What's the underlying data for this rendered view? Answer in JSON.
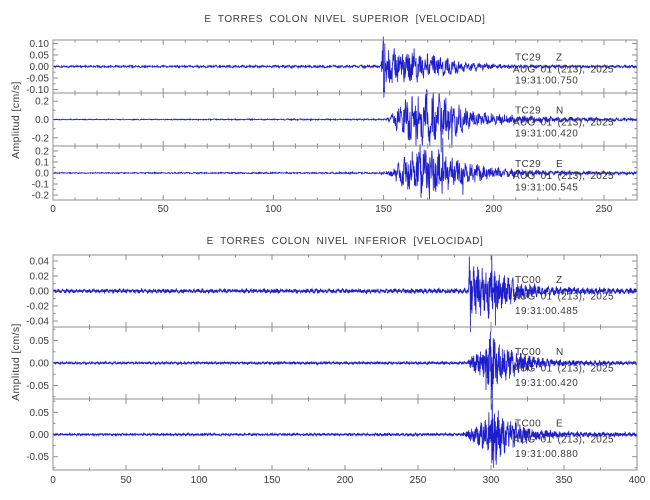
{
  "style": {
    "background": "#ffffff",
    "trace_color": "#1e1ecb",
    "frame_color": "#8f8f8f",
    "text_color": "#3b3b3b"
  },
  "chart_data": [
    {
      "type": "line",
      "title": "E TORRES COLON NIVEL SUPERIOR [VELOCIDAD]",
      "ylabel": "Amplitud [cm/s]",
      "xlim": [
        0,
        265
      ],
      "xticks": [
        0,
        50,
        100,
        150,
        200,
        250
      ],
      "xminor_step": 10,
      "grid": false,
      "legend": "none",
      "traces": [
        {
          "station": "TC29",
          "component": "Z",
          "date_label": "AUG 01 (213), 2025",
          "time_label": "19:31:00.750",
          "units": "cm/s",
          "ylim": [
            -0.115,
            0.115
          ],
          "ytick_labels": [
            "0.10",
            "0.05",
            "0.00",
            "-0.05",
            "-0.10"
          ],
          "ytick_values": [
            0.1,
            0.05,
            0.0,
            -0.05,
            -0.1
          ],
          "yminor_step": 0.025,
          "event_onset_s": 149,
          "peak_amplitude": 0.13,
          "envelope": [
            [
              0,
              0.0035
            ],
            [
              60,
              0.004
            ],
            [
              110,
              0.005
            ],
            [
              145,
              0.0055
            ],
            [
              148.8,
              0.006
            ],
            [
              149.6,
              0.12
            ],
            [
              151,
              0.09
            ],
            [
              154,
              0.075
            ],
            [
              158,
              0.065
            ],
            [
              163,
              0.07
            ],
            [
              168,
              0.055
            ],
            [
              174,
              0.045
            ],
            [
              180,
              0.032
            ],
            [
              187,
              0.022
            ],
            [
              195,
              0.013
            ],
            [
              205,
              0.009
            ],
            [
              220,
              0.007
            ],
            [
              240,
              0.006
            ],
            [
              265,
              0.005
            ]
          ],
          "spikes": [
            [
              149.8,
              0.13
            ],
            [
              150.15,
              -0.133
            ],
            [
              150.5,
              0.1
            ]
          ],
          "seed": 41
        },
        {
          "station": "TC29",
          "component": "N",
          "date_label": "AUG 01 (213), 2025",
          "time_label": "19:31:00.420",
          "units": "cm/s",
          "ylim": [
            -0.29,
            0.29
          ],
          "ytick_labels": [
            "0.2",
            "0.0",
            "-0.2"
          ],
          "ytick_values": [
            0.2,
            0.0,
            -0.2
          ],
          "yminor_step": 0.1,
          "event_onset_s": 151,
          "peak_amplitude": 0.36,
          "envelope": [
            [
              0,
              0.004
            ],
            [
              60,
              0.005
            ],
            [
              110,
              0.006
            ],
            [
              148,
              0.007
            ],
            [
              151.5,
              0.012
            ],
            [
              154,
              0.06
            ],
            [
              157,
              0.13
            ],
            [
              160,
              0.2
            ],
            [
              164,
              0.26
            ],
            [
              168,
              0.24
            ],
            [
              171,
              0.3
            ],
            [
              174,
              0.26
            ],
            [
              178,
              0.22
            ],
            [
              182,
              0.16
            ],
            [
              187,
              0.11
            ],
            [
              193,
              0.075
            ],
            [
              200,
              0.055
            ],
            [
              210,
              0.04
            ],
            [
              222,
              0.03
            ],
            [
              240,
              0.022
            ],
            [
              265,
              0.016
            ]
          ],
          "spikes": [
            [
              169.5,
              0.33
            ],
            [
              172.5,
              0.3
            ],
            [
              176.2,
              -0.36
            ],
            [
              181.0,
              -0.31
            ]
          ],
          "seed": 42
        },
        {
          "station": "TC29",
          "component": "E",
          "date_label": "AUG 01 (213), 2025",
          "time_label": "19:31:00.545",
          "units": "cm/s",
          "ylim": [
            -0.245,
            0.245
          ],
          "ytick_labels": [
            "0.2",
            "0.1",
            "0.0",
            "-0.1",
            "-0.2"
          ],
          "ytick_values": [
            0.2,
            0.1,
            0.0,
            -0.1,
            -0.2
          ],
          "yminor_step": 0.05,
          "event_onset_s": 152,
          "peak_amplitude": 0.32,
          "envelope": [
            [
              0,
              0.004
            ],
            [
              60,
              0.005
            ],
            [
              110,
              0.006
            ],
            [
              148,
              0.0065
            ],
            [
              152,
              0.02
            ],
            [
              155,
              0.07
            ],
            [
              159,
              0.12
            ],
            [
              163,
              0.17
            ],
            [
              166,
              0.22
            ],
            [
              170,
              0.18
            ],
            [
              174,
              0.2
            ],
            [
              178,
              0.15
            ],
            [
              183,
              0.11
            ],
            [
              189,
              0.08
            ],
            [
              196,
              0.055
            ],
            [
              205,
              0.038
            ],
            [
              218,
              0.025
            ],
            [
              240,
              0.017
            ],
            [
              265,
              0.013
            ]
          ],
          "spikes": [
            [
              166.5,
              0.26
            ],
            [
              170.9,
              -0.24
            ],
            [
              176.8,
              0.32
            ],
            [
              186,
              -0.2
            ]
          ],
          "seed": 43
        }
      ]
    },
    {
      "type": "line",
      "title": "E TORRES COLON NIVEL INFERIOR [VELOCIDAD]",
      "ylabel": "Amplitud [cm/s]",
      "xlim": [
        0,
        400
      ],
      "xticks": [
        0,
        50,
        100,
        150,
        200,
        250,
        300,
        350,
        400
      ],
      "xminor_step": 25,
      "grid": false,
      "legend": "none",
      "traces": [
        {
          "station": "TC00",
          "component": "Z",
          "date_label": "AUG 01 (213), 2025",
          "time_label": "19:31:00.485",
          "units": "cm/s",
          "ylim": [
            -0.048,
            0.048
          ],
          "ytick_labels": [
            "0.04",
            "0.02",
            "0.00",
            "-0.02",
            "-0.04"
          ],
          "ytick_values": [
            0.04,
            0.02,
            0.0,
            -0.02,
            -0.04
          ],
          "yminor_step": 0.01,
          "event_onset_s": 285,
          "peak_amplitude": 0.055,
          "envelope": [
            [
              0,
              0.0022
            ],
            [
              150,
              0.0026
            ],
            [
              250,
              0.0028
            ],
            [
              282,
              0.003
            ],
            [
              284.5,
              0.0032
            ],
            [
              285.5,
              0.042
            ],
            [
              287,
              0.035
            ],
            [
              289,
              0.028
            ],
            [
              292,
              0.03
            ],
            [
              296,
              0.026
            ],
            [
              299,
              0.032
            ],
            [
              302,
              0.027
            ],
            [
              306,
              0.022
            ],
            [
              311,
              0.017
            ],
            [
              317,
              0.013
            ],
            [
              325,
              0.009
            ],
            [
              336,
              0.006
            ],
            [
              352,
              0.0045
            ],
            [
              375,
              0.0038
            ],
            [
              400,
              0.0033
            ]
          ],
          "spikes": [
            [
              285.2,
              0.046
            ],
            [
              285.8,
              -0.055
            ],
            [
              300.5,
              0.047
            ],
            [
              303,
              -0.046
            ]
          ],
          "seed": 44
        },
        {
          "station": "TC00",
          "component": "N",
          "date_label": "AUG 01 (213), 2025",
          "time_label": "19:31:00.420",
          "units": "cm/s",
          "ylim": [
            -0.08,
            0.08
          ],
          "ytick_labels": [
            "0.05",
            "0.00",
            "-0.05"
          ],
          "ytick_values": [
            0.05,
            0.0,
            -0.05
          ],
          "yminor_step": 0.025,
          "event_onset_s": 285,
          "peak_amplitude": 0.104,
          "envelope": [
            [
              0,
              0.002
            ],
            [
              200,
              0.0024
            ],
            [
              280,
              0.0028
            ],
            [
              284,
              0.003
            ],
            [
              286,
              0.014
            ],
            [
              289,
              0.02
            ],
            [
              292,
              0.025
            ],
            [
              295,
              0.032
            ],
            [
              298,
              0.042
            ],
            [
              300,
              0.06
            ],
            [
              302,
              0.045
            ],
            [
              305,
              0.04
            ],
            [
              309,
              0.034
            ],
            [
              314,
              0.027
            ],
            [
              320,
              0.02
            ],
            [
              327,
              0.014
            ],
            [
              336,
              0.009
            ],
            [
              350,
              0.006
            ],
            [
              370,
              0.0045
            ],
            [
              400,
              0.0035
            ]
          ],
          "spikes": [
            [
              296.5,
              -0.06
            ],
            [
              299.6,
              0.07
            ],
            [
              300.2,
              -0.104
            ],
            [
              301.5,
              0.055
            ]
          ],
          "seed": 45
        },
        {
          "station": "TC00",
          "component": "E",
          "date_label": "AUG 01 (213), 2025",
          "time_label": "19:31:00.880",
          "units": "cm/s",
          "ylim": [
            -0.08,
            0.08
          ],
          "ytick_labels": [
            "0.05",
            "0.00",
            "-0.05"
          ],
          "ytick_values": [
            0.05,
            0.0,
            -0.05
          ],
          "yminor_step": 0.025,
          "event_onset_s": 285,
          "peak_amplitude": 0.11,
          "envelope": [
            [
              0,
              0.002
            ],
            [
              200,
              0.0024
            ],
            [
              280,
              0.0028
            ],
            [
              285,
              0.012
            ],
            [
              288,
              0.018
            ],
            [
              292,
              0.024
            ],
            [
              296,
              0.032
            ],
            [
              299,
              0.045
            ],
            [
              301,
              0.06
            ],
            [
              303,
              0.05
            ],
            [
              307,
              0.04
            ],
            [
              312,
              0.032
            ],
            [
              318,
              0.024
            ],
            [
              325,
              0.017
            ],
            [
              333,
              0.011
            ],
            [
              345,
              0.007
            ],
            [
              365,
              0.005
            ],
            [
              400,
              0.004
            ]
          ],
          "spikes": [
            [
              298.5,
              0.05
            ],
            [
              300.8,
              0.11
            ],
            [
              301.8,
              -0.075
            ],
            [
              303.5,
              -0.068
            ]
          ],
          "seed": 46
        }
      ]
    }
  ]
}
